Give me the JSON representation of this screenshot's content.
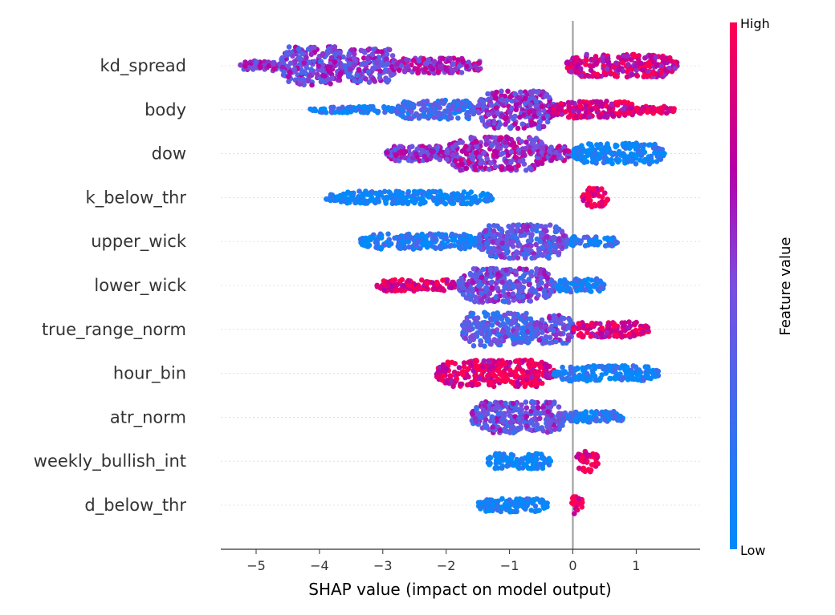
{
  "chart_data": {
    "type": "scatter",
    "subtype": "shap-beeswarm",
    "title": "",
    "xlabel": "SHAP value (impact on model output)",
    "ylabel": "",
    "xlim": [
      -5.55,
      2.0
    ],
    "xticks": [
      -5,
      -4,
      -3,
      -2,
      -1,
      0,
      1
    ],
    "xtick_labels": [
      "−5",
      "−4",
      "−3",
      "−2",
      "−1",
      "0",
      "1"
    ],
    "zero_line": 0,
    "grid": false,
    "colorbar": {
      "title": "Feature value",
      "high_label": "High",
      "low_label": "Low",
      "low_color": "#008bfb",
      "high_color": "#ff0052",
      "mid_color": "#b400a8",
      "placement": "right"
    },
    "features": [
      {
        "name": "kd_spread",
        "segments": [
          [
            -5.25,
            -4.6,
            0.55,
            0.2
          ],
          [
            -4.6,
            -3.6,
            0.5,
            1.0
          ],
          [
            -3.6,
            -2.8,
            0.5,
            0.85
          ],
          [
            -2.8,
            -1.6,
            0.65,
            0.35
          ],
          [
            -1.6,
            -1.45,
            0.7,
            0.18
          ],
          [
            -0.1,
            1.65,
            0.8,
            0.55
          ]
        ]
      },
      {
        "name": "body",
        "segments": [
          [
            -4.15,
            -2.8,
            0.1,
            0.1
          ],
          [
            -2.8,
            -1.5,
            0.25,
            0.45
          ],
          [
            -1.5,
            -0.3,
            0.55,
            0.95
          ],
          [
            -0.3,
            1.0,
            0.85,
            0.4
          ],
          [
            1.0,
            1.6,
            0.9,
            0.15
          ]
        ]
      },
      {
        "name": "dow",
        "segments": [
          [
            -2.95,
            -2.0,
            0.55,
            0.35
          ],
          [
            -2.0,
            -0.4,
            0.62,
            0.85
          ],
          [
            -0.4,
            0.0,
            0.6,
            0.35
          ],
          [
            0.0,
            1.45,
            0.05,
            0.5
          ]
        ]
      },
      {
        "name": "k_below_thr",
        "segments": [
          [
            -3.9,
            -1.25,
            0.0,
            0.28
          ],
          [
            0.15,
            0.55,
            1.0,
            0.45
          ]
        ]
      },
      {
        "name": "upper_wick",
        "segments": [
          [
            -3.35,
            -1.5,
            0.1,
            0.35
          ],
          [
            -1.5,
            -0.1,
            0.4,
            0.85
          ],
          [
            -0.1,
            0.7,
            0.15,
            0.2
          ]
        ]
      },
      {
        "name": "lower_wick",
        "segments": [
          [
            -3.1,
            -1.8,
            0.9,
            0.25
          ],
          [
            -1.8,
            -0.3,
            0.45,
            0.85
          ],
          [
            -0.3,
            0.5,
            0.15,
            0.3
          ]
        ]
      },
      {
        "name": "true_range_norm",
        "segments": [
          [
            -1.75,
            -0.6,
            0.35,
            0.85
          ],
          [
            -0.6,
            0.0,
            0.45,
            0.7
          ],
          [
            0.0,
            1.2,
            0.85,
            0.35
          ]
        ]
      },
      {
        "name": "hour_bin",
        "segments": [
          [
            -2.15,
            -0.3,
            0.88,
            0.65
          ],
          [
            -0.3,
            1.35,
            0.08,
            0.35
          ]
        ]
      },
      {
        "name": "atr_norm",
        "segments": [
          [
            -1.6,
            -0.1,
            0.45,
            0.8
          ],
          [
            -0.1,
            0.8,
            0.15,
            0.25
          ]
        ]
      },
      {
        "name": "weekly_bullish_int",
        "segments": [
          [
            -1.35,
            -0.35,
            0.02,
            0.35
          ],
          [
            0.05,
            0.4,
            0.98,
            0.5
          ]
        ]
      },
      {
        "name": "d_below_thr",
        "segments": [
          [
            -1.5,
            -0.4,
            0.02,
            0.3
          ],
          [
            -0.02,
            0.15,
            0.98,
            0.5
          ]
        ]
      }
    ]
  }
}
